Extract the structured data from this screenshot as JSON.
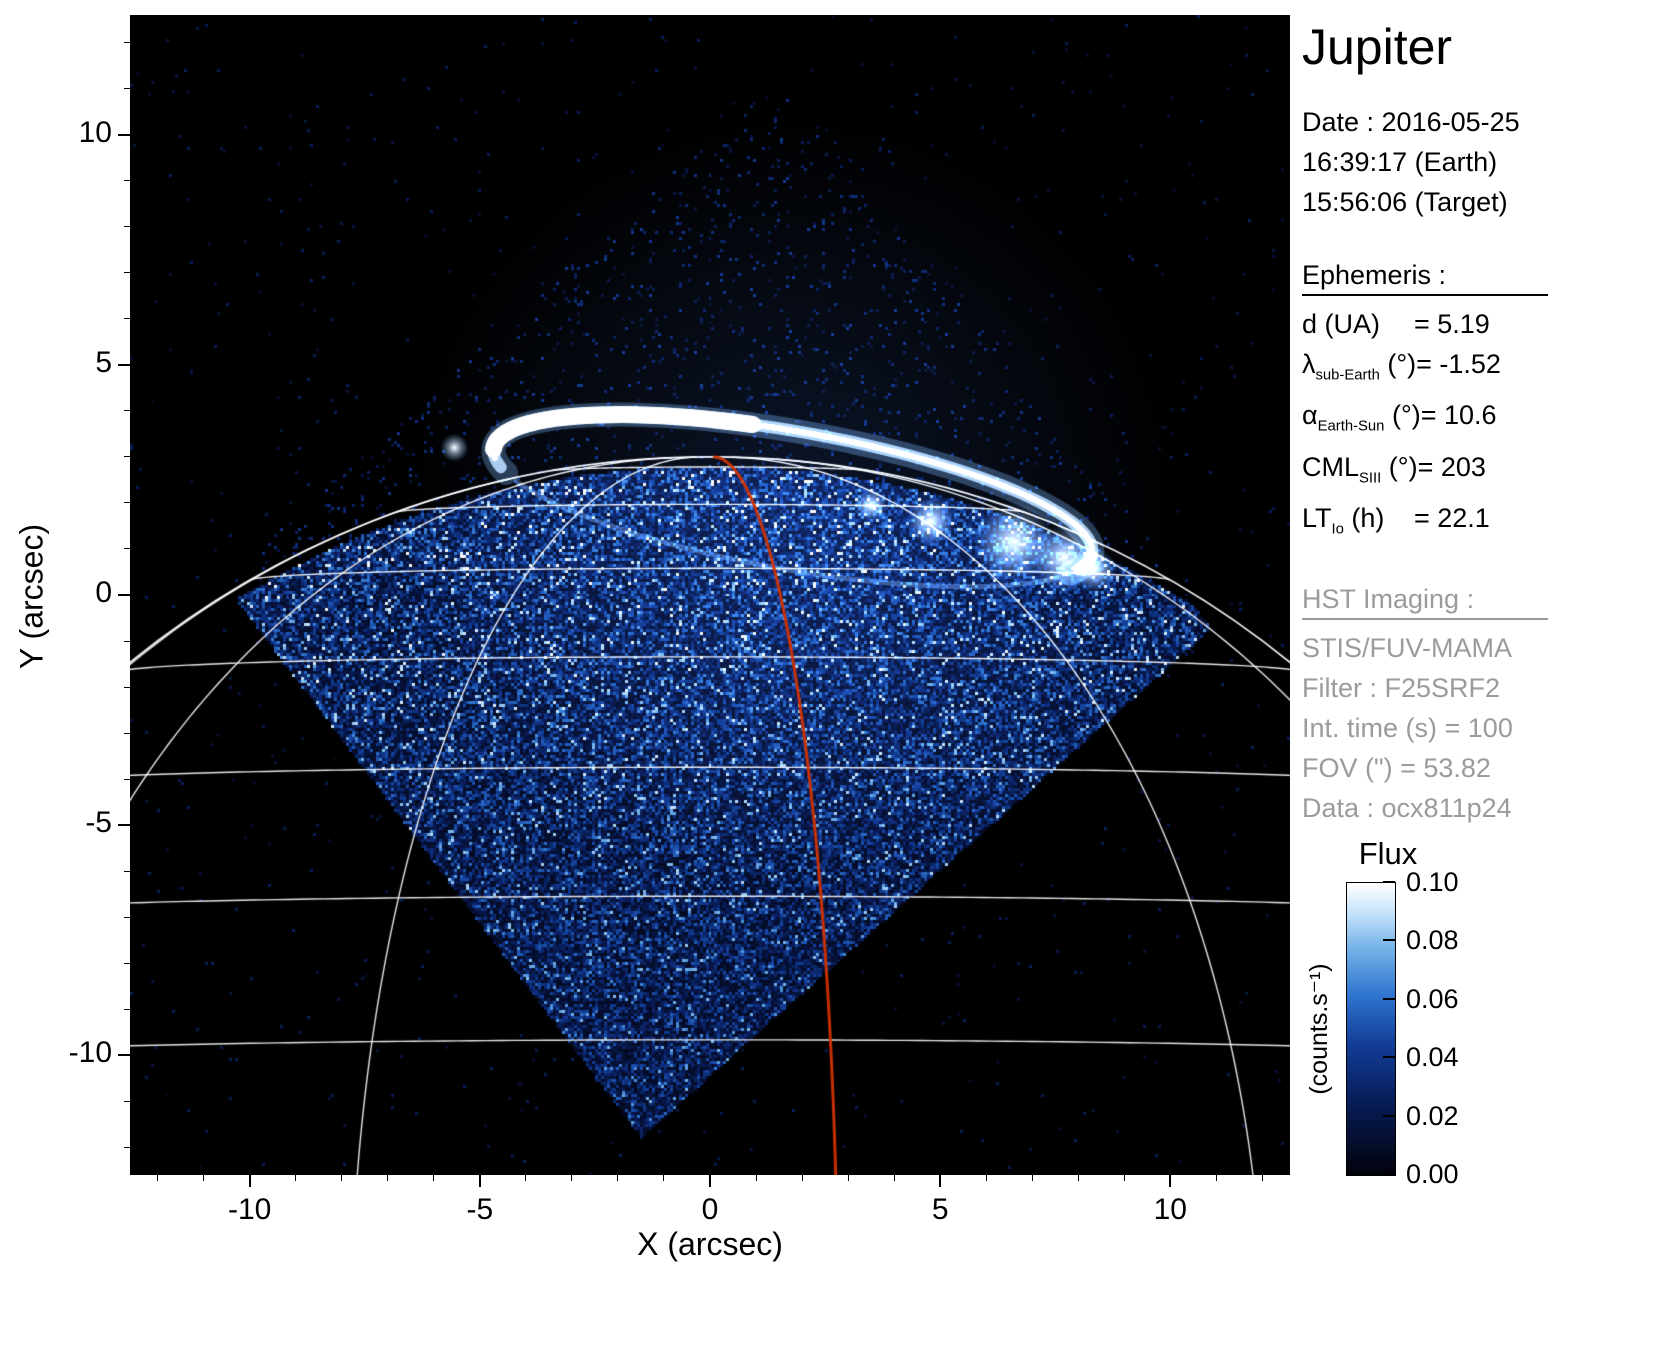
{
  "panel": {
    "title": "Jupiter",
    "date_lines": [
      "Date : 2016-05-25",
      "16:39:17 (Earth)",
      "15:56:06 (Target)"
    ],
    "ephemeris": {
      "heading": "Ephemeris :",
      "items": [
        {
          "sym": "d",
          "sub": "",
          "unit": "(UA)",
          "value": "= 5.19"
        },
        {
          "sym": "λ",
          "sub": "sub-Earth",
          "unit": "(°)",
          "value": "= -1.52"
        },
        {
          "sym": "α",
          "sub": "Earth-Sun",
          "unit": "(°)",
          "value": "= 10.6"
        },
        {
          "sym": "CML",
          "sub": "SIII",
          "unit": "(°)",
          "value": "= 203"
        },
        {
          "sym": "LT",
          "sub": "Io",
          "unit": "(h)",
          "value": "= 22.1"
        }
      ]
    },
    "hst": {
      "heading": "HST Imaging :",
      "lines": [
        "STIS/FUV-MAMA",
        "Filter : F25SRF2",
        "Int. time (s) = 100",
        "FOV (\") = 53.82",
        "Data : ocx811p24"
      ]
    }
  },
  "colorbar": {
    "title": "Flux",
    "unit": "(counts.s⁻¹)",
    "ticks": [
      "0.10",
      "0.08",
      "0.06",
      "0.04",
      "0.02",
      "0.00"
    ]
  },
  "chart_data": {
    "type": "heatmap",
    "xlabel": "X (arcsec)",
    "ylabel": "Y (arcsec)",
    "xlim": [
      -12.6,
      12.6
    ],
    "ylim": [
      -12.6,
      12.6
    ],
    "xticks": [
      -10,
      -5,
      0,
      5,
      10
    ],
    "yticks": [
      10,
      5,
      0,
      -5,
      -10
    ],
    "flux_range": [
      0.0,
      0.1
    ],
    "background": "#000000",
    "colormap": [
      {
        "v": 0,
        "color": "#02020a"
      },
      {
        "v": 0.25,
        "color": "#081c58"
      },
      {
        "v": 0.45,
        "color": "#123e98"
      },
      {
        "v": 0.62,
        "color": "#3076d0"
      },
      {
        "v": 0.78,
        "color": "#76b4e8"
      },
      {
        "v": 0.9,
        "color": "#c8e4fa"
      },
      {
        "v": 1,
        "color": "#ffffff"
      }
    ],
    "planet": {
      "center_x": 0,
      "center_y": -17,
      "radius_arcsec": 20,
      "subearth_lat_deg": -1.52,
      "cml_deg": 203
    },
    "graticule": {
      "color": "#ffffff",
      "lat_min_deg": 10,
      "lat_max_deg": 80,
      "lat_step_deg": 10,
      "meridians_dlon_deg": [
        -83,
        -53,
        -23,
        37,
        67
      ]
    },
    "red_meridian": {
      "dlon_deg": 8,
      "color": "#d13200"
    },
    "fov_diamond_arcsec": [
      [
        -1.5,
        -11.8
      ],
      [
        10.9,
        -0.75
      ],
      [
        1.6,
        11.4
      ],
      [
        -10.6,
        0.3
      ]
    ],
    "aurora": {
      "center_arcsec": [
        1.8,
        2.05
      ],
      "semi_major_arcsec": 6.6,
      "semi_minor_arcsec": 1.5,
      "rotation_deg": -10,
      "bright_patches": [
        [
          6.6,
          1.15,
          40
        ],
        [
          7.7,
          0.8,
          34
        ],
        [
          8.35,
          0.55,
          22
        ],
        [
          4.8,
          1.6,
          24
        ],
        [
          3.5,
          1.95,
          16
        ]
      ],
      "io_footprint_arcsec": [
        -5.55,
        3.2
      ]
    }
  }
}
